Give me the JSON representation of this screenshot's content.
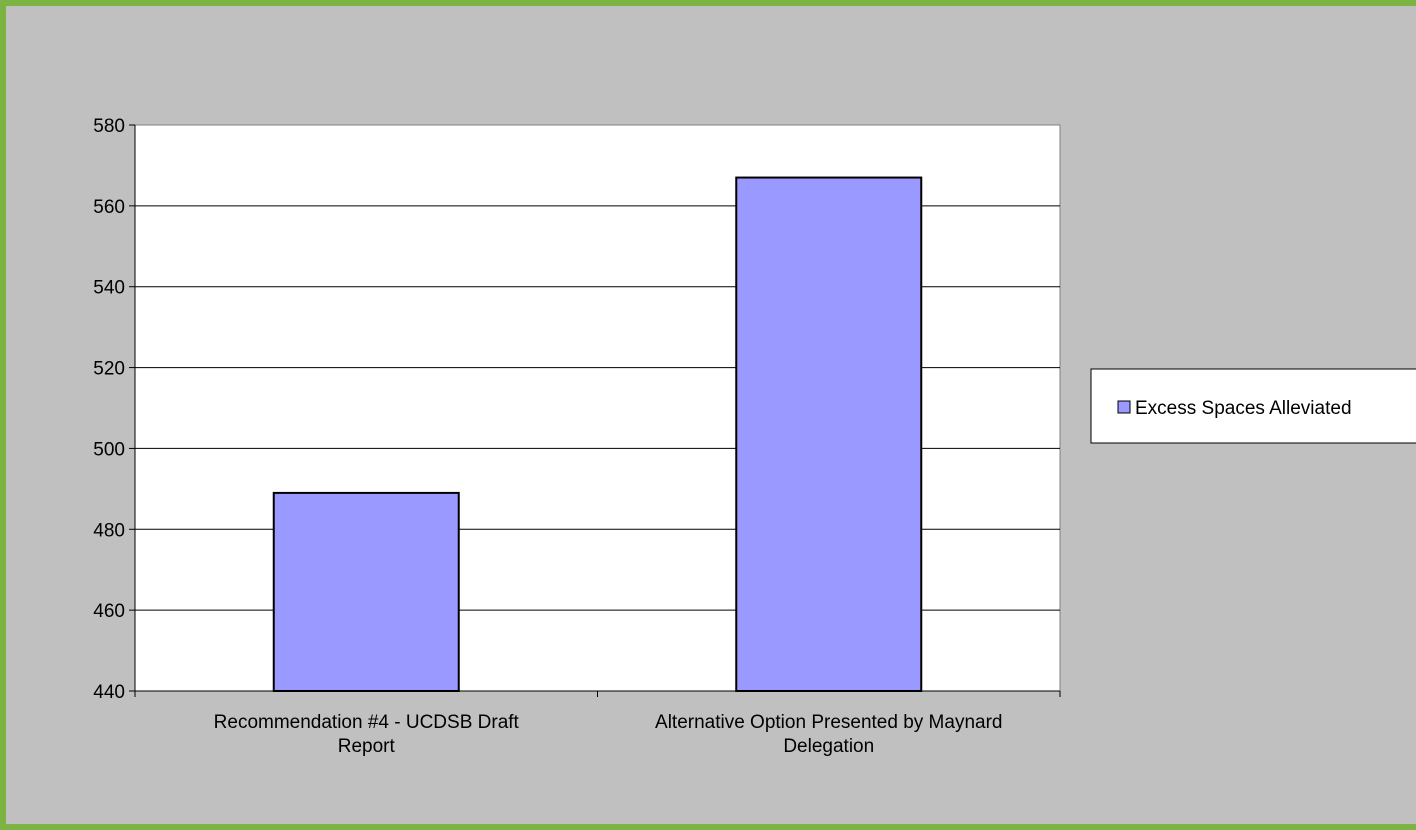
{
  "chart_data": {
    "type": "bar",
    "categories": [
      [
        "Recommendation #4 - UCDSB Draft",
        "Report"
      ],
      [
        "Alternative Option Presented by Maynard",
        "Delegation"
      ]
    ],
    "series": [
      {
        "name": "Excess Spaces Alleviated",
        "values": [
          489,
          567
        ],
        "color": "#9999ff"
      }
    ],
    "y_ticks": [
      "440",
      "460",
      "480",
      "500",
      "520",
      "540",
      "560",
      "580"
    ],
    "ylim": [
      440,
      580
    ],
    "grid": true,
    "legend_position": "right",
    "title": "",
    "xlabel": "",
    "ylabel": ""
  }
}
